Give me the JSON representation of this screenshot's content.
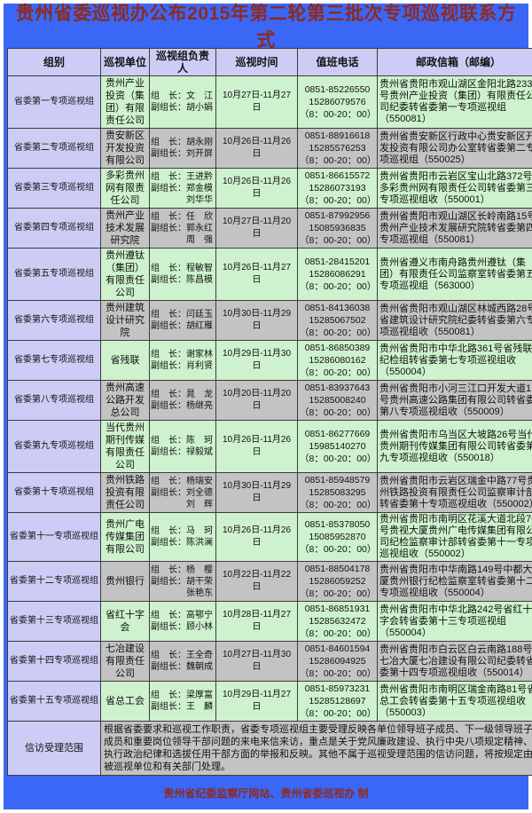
{
  "page": {
    "title": "贵州省委巡视办公布2015年第二轮第三批次专项巡视联系方式",
    "footer_credit": "贵州省纪委监察厅网站、贵州省委巡视办  制",
    "colors": {
      "banner_blue": "#3a67f5",
      "header_lavender": "#ccccf5",
      "row_green": "#cdf2cd",
      "row_gray": "#c3c3c3",
      "title_red": "#8f2a1e"
    }
  },
  "table": {
    "headers": [
      "组别",
      "巡视单位",
      "巡视组负责人",
      "巡视时间",
      "值班电话",
      "邮政信箱（邮编）"
    ],
    "rows": [
      {
        "group": "省委第一专项巡视组",
        "unit": "贵州产业投资（集团）有限责任公司",
        "leaders": "组　长：文　江\n副组长：胡小娟",
        "time": "10月27日-11月27日",
        "phone": "0851-85226550\n15286079576\n（8：00-20：00）",
        "mailbox": "贵州省贵阳市观山湖区金阳北路233号贵州产业投资（集团）有限责任公司纪委转省委第一专项巡视组（550081）"
      },
      {
        "group": "省委第二专项巡视组",
        "unit": "贵安新区开发投资有限公司",
        "leaders": "组　长：胡永刚\n副组长：刘开屏",
        "time": "10月26日-11月26日",
        "phone": "0851-88916618\n15285576253\n（8：00-20：00）",
        "mailbox": "贵州省贵安新区行政中心贵安新区开发投资有限公司办公室转省委第二专项巡视组（550025）"
      },
      {
        "group": "省委第三专项巡视组",
        "unit": "多彩贵州网有限责任公司",
        "leaders": "组　长：王进黔\n副组长：郑金模\n　　　　刘华华",
        "time": "10月26日-11月26日",
        "phone": "0851-86615572\n15286073193\n（8：00-20：00）",
        "mailbox": "贵州省贵阳市云岩区宝山北路372号多彩贵州网有限责任公司转省委第三专项巡视组收（550001）"
      },
      {
        "group": "省委第四专项巡视组",
        "unit": "贵州产业技术发展研究院",
        "leaders": "组　长：任　欣\n副组长：郭永红\n　　　　周　强",
        "time": "10月27日-11月20日",
        "phone": "0851-87992956\n15085936835\n（8：00-20：00）",
        "mailbox": "贵州省贵阳市观山湖区长岭南路15号贵州产业技术发展研究院转省委第四专项巡视组（550081）"
      },
      {
        "group": "省委第五专项巡视组",
        "unit": "贵州遵钛（集团）有限责任公司",
        "leaders": "组　长：程敏智\n副组长：陈昌模",
        "time": "10月26日-11月27日",
        "phone": "0851-28415201\n15286086291\n（8：00-20：00）",
        "mailbox": "贵州省遵义市南舟路贵州遵钛（集团）有限责任公司监察室转省委第五专项巡视组（563000）"
      },
      {
        "group": "省委第六专项巡视组",
        "unit": "贵州建筑设计研究院",
        "leaders": "组　长：闫廷玉\n副组长：胡红雁",
        "time": "10月30日-11月29日",
        "phone": "0851-84136038\n15285067502\n（8：00-20：00）",
        "mailbox": "贵州省贵阳市观山湖区林城西路28号省建筑设计研究院纪委转省委第六专项巡视组收（550081）"
      },
      {
        "group": "省委第七专项巡视组",
        "unit": "省残联",
        "leaders": "组　长：谢家林\n副组长：肖利贤",
        "time": "10月29日-11月30日",
        "phone": "0851-86850389\n15286080162\n（8：00-20：00）",
        "mailbox": "贵州省贵阳市中华北路361号省残联纪检组转省委第七专项巡视组收（550004）"
      },
      {
        "group": "省委第八专项巡视组",
        "unit": "贵州高速公路开发总公司",
        "leaders": "组　长：晁　龙\n副组长：杨继亮",
        "time": "10月20日-11月20日",
        "phone": "0851-83937643\n15285008240\n（8：00-20：00）",
        "mailbox": "贵州省贵阳市小河三江口开发大道1号贵州高速公路集团有限公司转省委第八专项巡视组收（550009）"
      },
      {
        "group": "省委第九专项巡视组",
        "unit": "当代贵州期刊传媒有限责任公司",
        "leaders": "组　长：陈　珂\n副组长：禄毅斌",
        "time": "10月26日-11月26日",
        "phone": "0851-86277669\n15985140270\n（8：00-20：00）",
        "mailbox": "贵州省贵阳市乌当区大坡路26号当代贵州期刊传媒集团有限公司转省委第九专项巡视组收（550018）"
      },
      {
        "group": "省委第十专项巡视组",
        "unit": "贵州铁路投资有限责任公司",
        "leaders": "组　长：杨瑞安\n副组长：刘全德\n　　　　刘　辉",
        "time": "10月30日-11月29日",
        "phone": "0851-85948579\n15285083295\n（8：00-20：00）",
        "mailbox": "贵州省贵阳市云岩区瑞金中路77号贵州铁路投资有限责任公司监察审计部转省委第十专项巡视组收（550002）"
      },
      {
        "group": "省委第十一专项巡视组",
        "unit": "贵州广电传媒集团有限公司",
        "leaders": "组　长：马　珂\n副组长：陈洪澜",
        "time": "10月26日-11月26日",
        "phone": "0851-85378050\n15085952870\n（8：00-20：00）",
        "mailbox": "贵州省贵阳市南明区花溪大道北段76号贵视大厦贵州广电传媒集团有限公司纪检监察审计部转省委第十一专项巡视组收（550002）"
      },
      {
        "group": "省委第十二专项巡视组",
        "unit": "贵州银行",
        "leaders": "组　长：杨　樱\n副组长：胡干荣\n　　　　张艳东",
        "time": "10月22日-11月22日",
        "phone": "0851-88504178\n15286059252\n（8：00-20：00）",
        "mailbox": "贵州省贵阳市中华南路149号中都大厦贵州银行纪检监察室转省委第十二专项巡视组收（550004）"
      },
      {
        "group": "省委第十三专项巡视组",
        "unit": "省红十字会",
        "leaders": "组　长：高鄂宁\n副组长：顾小林",
        "time": "10月28日-11月27日",
        "phone": "0851-86851931\n15285632472\n（8：00-20：00）",
        "mailbox": "贵州省贵阳市中华北路242号省红十字会转省委第十三专项巡视组（550004）"
      },
      {
        "group": "省委第十四专项巡视组",
        "unit": "七冶建设有限责任公司",
        "leaders": "组　长：王全奇\n副组长：魏朝成",
        "time": "10月27日-11月30日",
        "phone": "0851-84601594\n15286094925\n（8：00-20：00）",
        "mailbox": "贵州省贵阳市白云区白云南路188号七冶大厦七冶建设有限公司纪委转省委第十四专项巡视组收（550014）"
      },
      {
        "group": "省委第十五专项巡视组",
        "unit": "省总工会",
        "leaders": "组　长：梁厚富\n副组长：王　麟",
        "time": "10月29日-11月27日",
        "phone": "0851-85973231\n15285128697\n（8：00-20：00）",
        "mailbox": "贵州省贵阳市南明区瑞金南路81号省总工会转省委第十五专项巡视组收（550003）"
      }
    ],
    "petition": {
      "label": "信访受理范围",
      "content": "根据省委要求和巡视工作职责，省委专项巡视组主要受理反映各单位领导班子成员、下一级领导班子成员和重要岗位领导干部问题的来电来信来访，重点是关于党风廉政建设、执行中央八项规定精神、执行政治纪律和选拔任用干部方面的举报和反映。其他不属于巡视受理范围的信访问题，将按规定由被巡视单位和有关部门处理。"
    }
  }
}
